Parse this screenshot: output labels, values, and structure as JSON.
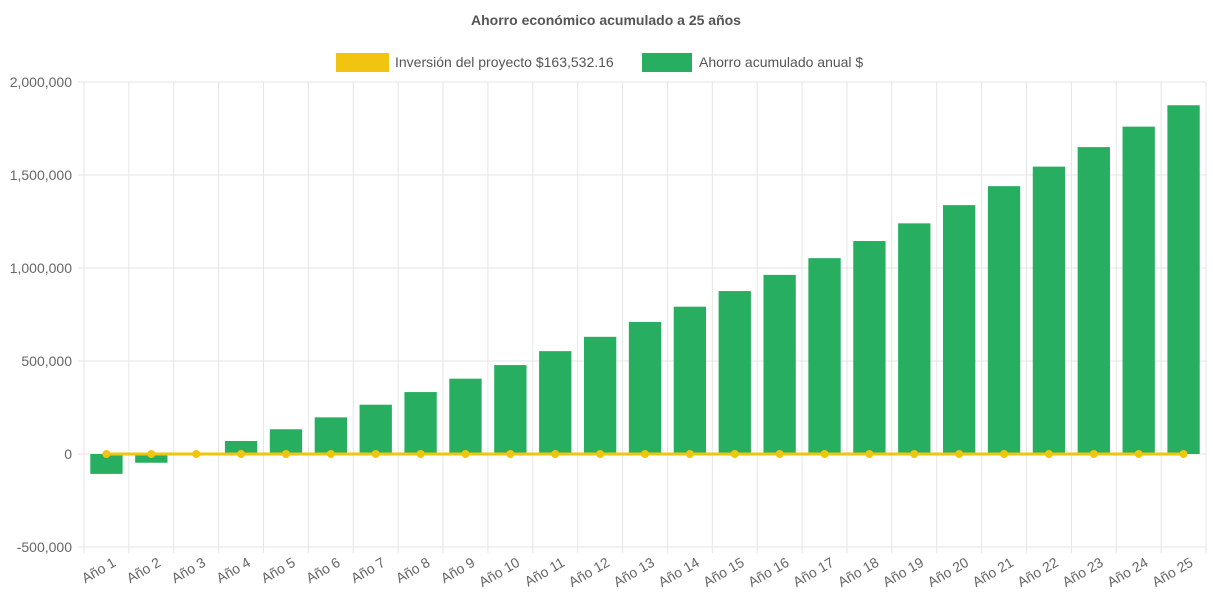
{
  "colors": {
    "investment": "#f1c40f",
    "savings": "#27ae60",
    "grid": "#e5e5e5",
    "axis": "#cccccc",
    "text": "#666666"
  },
  "chart_data": {
    "type": "bar",
    "title": "Ahorro económico acumulado a 25 años",
    "legend_position": "top",
    "grid": true,
    "categories": [
      "Año 1",
      "Año 2",
      "Año 3",
      "Año 4",
      "Año 5",
      "Año 6",
      "Año 7",
      "Año 8",
      "Año 9",
      "Año 10",
      "Año 11",
      "Año 12",
      "Año 13",
      "Año 14",
      "Año 15",
      "Año 16",
      "Año 17",
      "Año 18",
      "Año 19",
      "Año 20",
      "Año 21",
      "Año 22",
      "Año 23",
      "Año 24",
      "Año 25"
    ],
    "ylim": [
      -500000,
      2000000
    ],
    "yticks": [
      2000000,
      1500000,
      1000000,
      500000,
      0,
      -500000
    ],
    "ytick_labels": [
      "2,000,000",
      "1,500,000",
      "1,000,000",
      "500,000",
      "0",
      "-500,000"
    ],
    "series": [
      {
        "name": "Inversión del proyecto $163,532.16",
        "type": "line",
        "color": "#f1c40f",
        "values": [
          0,
          0,
          0,
          0,
          0,
          0,
          0,
          0,
          0,
          0,
          0,
          0,
          0,
          0,
          0,
          0,
          0,
          0,
          0,
          0,
          0,
          0,
          0,
          0,
          0
        ]
      },
      {
        "name": "Ahorro acumulado anual $",
        "type": "bar",
        "color": "#27ae60",
        "values": [
          -107000,
          -47000,
          7000,
          70000,
          133000,
          197000,
          265000,
          333000,
          405000,
          478000,
          553000,
          630000,
          710000,
          792000,
          876000,
          963000,
          1053000,
          1145000,
          1240000,
          1338000,
          1440000,
          1545000,
          1650000,
          1760000,
          1875000
        ]
      }
    ]
  }
}
